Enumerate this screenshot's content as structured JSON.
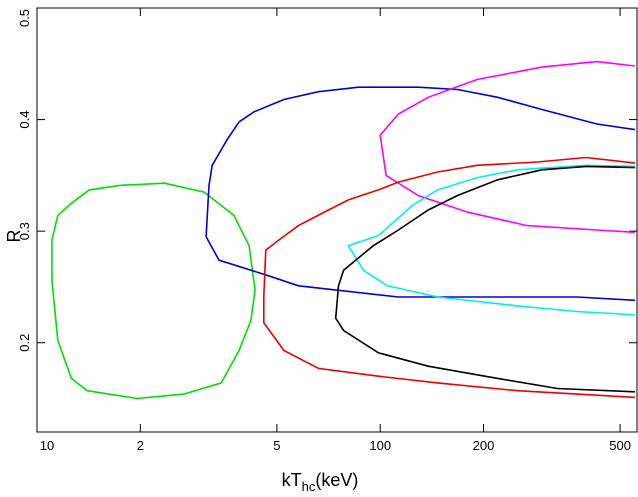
{
  "chart_data": {
    "type": "line",
    "xlabel": {
      "main": "kT",
      "sub": "hc",
      "unit": "(keV)"
    },
    "ylabel": "R",
    "log_x": true,
    "xlim": [
      10,
      560
    ],
    "ylim": [
      0.12,
      0.5
    ],
    "xticks": [
      {
        "value": 10,
        "label": "10"
      },
      {
        "value": 20,
        "label": "2"
      },
      {
        "value": 50,
        "label": "5"
      },
      100,
      200,
      500
    ],
    "yticks": [
      0.2,
      0.3,
      0.4,
      0.5
    ],
    "series": [
      {
        "color": "#00e000",
        "x": [
          11.05,
          11.5,
          12.6,
          14.2,
          17.4,
          23.5,
          30.7,
          37.5,
          41.5,
          43.2,
          42.0,
          38.8,
          34.4,
          26.8,
          19.6,
          14.0,
          12.6,
          11.5,
          11.05,
          11.05
        ],
        "y": [
          0.292,
          0.314,
          0.325,
          0.337,
          0.341,
          0.343,
          0.335,
          0.314,
          0.287,
          0.247,
          0.22,
          0.193,
          0.164,
          0.154,
          0.15,
          0.157,
          0.168,
          0.202,
          0.256,
          0.292
        ]
      },
      {
        "color": "#0000dd",
        "x": [
          552,
          428,
          296,
          220,
          168,
          129,
          86.5,
          66.1,
          52.4,
          42.9,
          38.8,
          35.8,
          32.4,
          31.7,
          31.1,
          33.9,
          47.3,
          57.8,
          75.6,
          113,
          147,
          192,
          251,
          375,
          552
        ],
        "y": [
          0.391,
          0.396,
          0.409,
          0.42,
          0.427,
          0.429,
          0.429,
          0.425,
          0.418,
          0.407,
          0.398,
          0.382,
          0.359,
          0.341,
          0.295,
          0.274,
          0.26,
          0.251,
          0.247,
          0.241,
          0.241,
          0.241,
          0.241,
          0.241,
          0.238
        ]
      },
      {
        "color": "#ff00ff",
        "x": [
          552,
          428,
          296,
          192,
          138,
          113,
          100,
          104,
          129,
          180,
          268,
          428,
          552
        ],
        "y": [
          0.448,
          0.452,
          0.447,
          0.436,
          0.42,
          0.405,
          0.386,
          0.35,
          0.332,
          0.317,
          0.305,
          0.301,
          0.299
        ]
      },
      {
        "color": "#ee0000",
        "x": [
          552,
          398,
          287,
          192,
          147,
          113,
          98.8,
          80.8,
          70.7,
          57.8,
          50.6,
          46.4,
          45.8,
          45.8,
          52.4,
          66.1,
          98.8,
          147,
          251,
          375,
          552
        ],
        "y": [
          0.361,
          0.366,
          0.362,
          0.359,
          0.353,
          0.344,
          0.337,
          0.328,
          0.319,
          0.305,
          0.292,
          0.283,
          0.242,
          0.218,
          0.193,
          0.177,
          0.17,
          0.164,
          0.157,
          0.154,
          0.151
        ]
      },
      {
        "color": "#00eeee",
        "x": [
          552,
          398,
          251,
          192,
          147,
          124,
          98.8,
          80.8,
          89.3,
          105,
          147,
          251,
          375,
          552
        ],
        "y": [
          0.358,
          0.359,
          0.355,
          0.348,
          0.337,
          0.323,
          0.296,
          0.287,
          0.265,
          0.251,
          0.241,
          0.233,
          0.228,
          0.225
        ]
      },
      {
        "color": "#000000",
        "x": [
          552,
          398,
          296,
          220,
          168,
          138,
          113,
          95.5,
          78.2,
          75.6,
          74.2,
          78.2,
          98.8,
          138,
          220,
          328,
          552
        ],
        "y": [
          0.357,
          0.358,
          0.355,
          0.346,
          0.332,
          0.319,
          0.301,
          0.287,
          0.265,
          0.251,
          0.222,
          0.211,
          0.191,
          0.179,
          0.168,
          0.159,
          0.156
        ]
      }
    ]
  }
}
